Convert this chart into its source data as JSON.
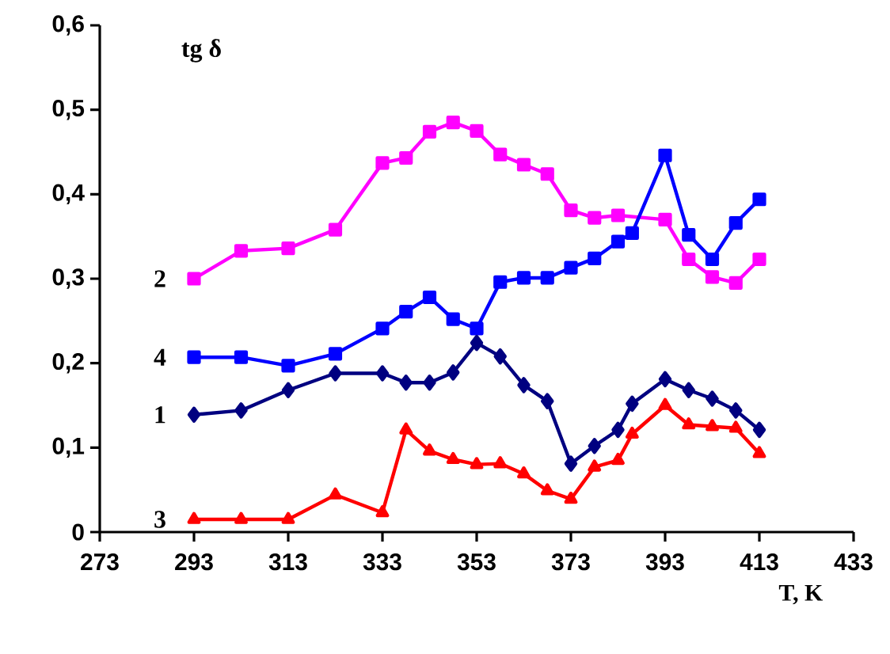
{
  "chart_data": {
    "type": "line",
    "xlabel": "T, K",
    "ylabel": "tg δ",
    "xlim": [
      273,
      433
    ],
    "xticks": [
      273,
      293,
      313,
      333,
      353,
      373,
      393,
      413,
      433
    ],
    "ylim": [
      0,
      0.6
    ],
    "yticks": [
      0,
      {
        "value": 0.1,
        "label": "0,1"
      },
      {
        "value": 0.2,
        "label": "0,2"
      },
      {
        "value": 0.3,
        "label": "0,3"
      },
      {
        "value": 0.4,
        "label": "0,4"
      },
      {
        "value": 0.5,
        "label": "0,5"
      },
      {
        "value": 0.6,
        "label": "0,6"
      }
    ],
    "grid": false,
    "legend": false,
    "series": [
      {
        "name": "2",
        "color": "#ff00ff",
        "marker": "square",
        "x": [
          293,
          303,
          313,
          323,
          333,
          338,
          343,
          348,
          353,
          358,
          363,
          368,
          373,
          378,
          383,
          393,
          398,
          403,
          408,
          413
        ],
        "values": [
          0.3,
          0.333,
          0.336,
          0.358,
          0.437,
          0.443,
          0.474,
          0.485,
          0.475,
          0.447,
          0.435,
          0.424,
          0.381,
          0.372,
          0.375,
          0.37,
          0.323,
          0.302,
          0.295,
          0.323
        ]
      },
      {
        "name": "4",
        "color": "#0000ff",
        "marker": "square",
        "x": [
          293,
          303,
          313,
          323,
          333,
          338,
          343,
          348,
          353,
          358,
          363,
          368,
          373,
          378,
          383,
          386,
          393,
          398,
          403,
          408,
          413
        ],
        "values": [
          0.207,
          0.207,
          0.197,
          0.211,
          0.241,
          0.261,
          0.278,
          0.252,
          0.241,
          0.296,
          0.301,
          0.301,
          0.313,
          0.324,
          0.344,
          0.354,
          0.446,
          0.352,
          0.323,
          0.366,
          0.394
        ]
      },
      {
        "name": "1",
        "color": "#000080",
        "marker": "diamond",
        "x": [
          293,
          303,
          313,
          323,
          333,
          338,
          343,
          348,
          353,
          358,
          363,
          368,
          373,
          378,
          383,
          386,
          393,
          398,
          403,
          408,
          413
        ],
        "values": [
          0.139,
          0.144,
          0.168,
          0.188,
          0.188,
          0.177,
          0.177,
          0.189,
          0.224,
          0.208,
          0.174,
          0.155,
          0.081,
          0.102,
          0.121,
          0.152,
          0.181,
          0.168,
          0.158,
          0.144,
          0.121
        ]
      },
      {
        "name": "3",
        "color": "#ff0000",
        "marker": "triangle",
        "x": [
          293,
          303,
          313,
          323,
          333,
          338,
          343,
          348,
          353,
          358,
          363,
          368,
          373,
          378,
          383,
          386,
          393,
          398,
          403,
          408,
          413
        ],
        "values": [
          0.015,
          0.015,
          0.015,
          0.044,
          0.023,
          0.121,
          0.096,
          0.086,
          0.08,
          0.081,
          0.069,
          0.049,
          0.039,
          0.077,
          0.085,
          0.116,
          0.15,
          0.127,
          0.125,
          0.123,
          0.093
        ]
      }
    ]
  }
}
